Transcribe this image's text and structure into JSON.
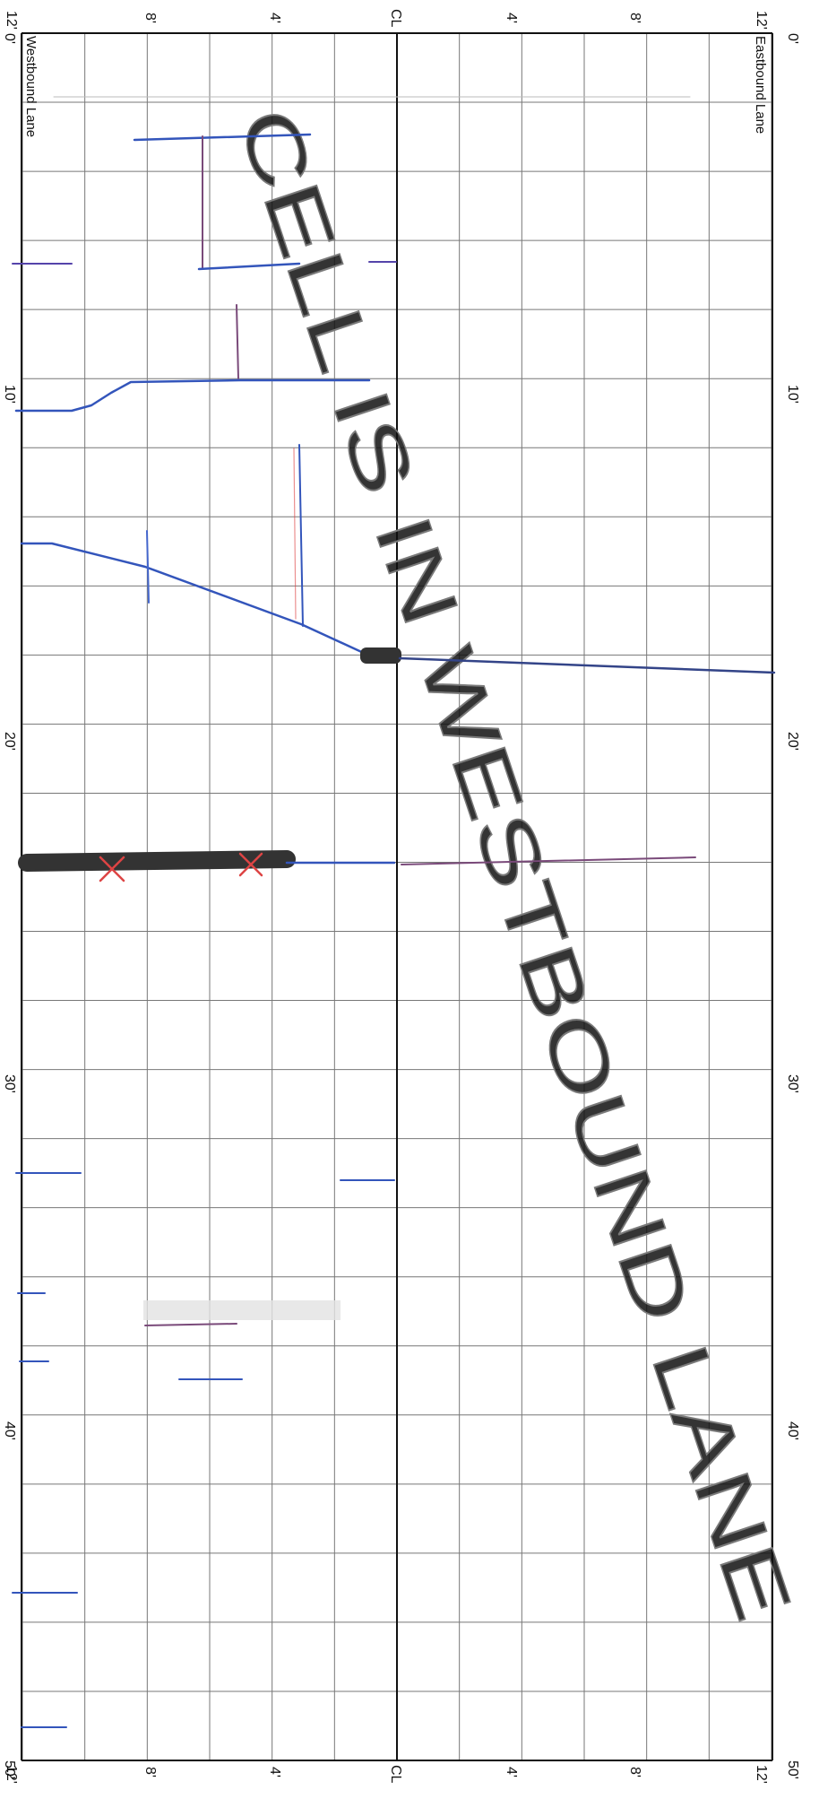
{
  "sheet": {
    "lane_labels": {
      "westbound": "Westbound Lane",
      "eastbound": "Eastbound Lane"
    },
    "centerline_label": "CL",
    "top_ruler": [
      "12'",
      "8'",
      "4'",
      "CL",
      "4'",
      "8'",
      "12'"
    ],
    "bottom_ruler": [
      "12'",
      "8'",
      "4'",
      "CL",
      "4'",
      "8'",
      "12'"
    ],
    "station_labels_left": [
      "0'",
      "10'",
      "20'",
      "30'",
      "40'",
      "50'"
    ],
    "station_labels_right": [
      "0'",
      "10'",
      "20'",
      "30'",
      "40'",
      "50'"
    ],
    "stamp_text": "CELL IS IN WESTBOUND LANE",
    "colors": {
      "grid_line": "#777777",
      "frame_line": "#111111",
      "crack_ink": "#3355bb",
      "red_ink": "#dd4444",
      "patch": "#333333",
      "stamp": "#8e8e8e"
    }
  }
}
